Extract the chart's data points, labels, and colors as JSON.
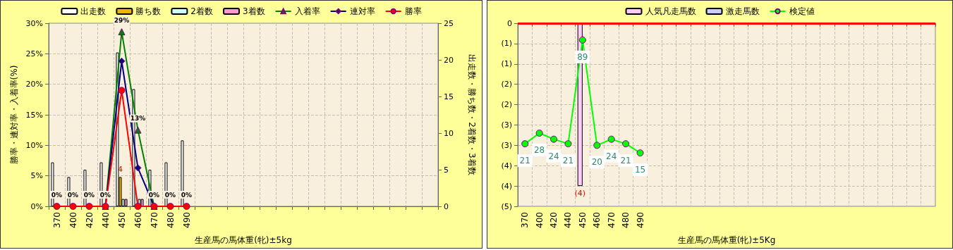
{
  "chart_data": [
    {
      "type": "bar",
      "xlabel": "生産馬の馬体重(牝)±5kg",
      "ylabel": "勝率・連対率・入着率(%)",
      "y2label": "出走数・勝ち数・2着数・3着数",
      "categories": [
        "370",
        "400",
        "420",
        "440",
        "450",
        "460",
        "470",
        "480",
        "490",
        null,
        null,
        null,
        null,
        null,
        null,
        null,
        null,
        null,
        null,
        null,
        null,
        null,
        null,
        null
      ],
      "ylim": [
        0,
        30
      ],
      "yticks": [
        {
          "value": 0,
          "label": "0%"
        },
        {
          "value": 5,
          "label": "5%"
        },
        {
          "value": 10,
          "label": "10%"
        },
        {
          "value": 15,
          "label": "15%"
        },
        {
          "value": 20,
          "label": "20%"
        },
        {
          "value": 25,
          "label": "25%"
        },
        {
          "value": 30,
          "label": "30%"
        }
      ],
      "y2lim": [
        0,
        25
      ],
      "y2ticks": [
        0,
        5,
        10,
        15,
        20,
        25
      ],
      "grid": true,
      "legend": "top",
      "series": [
        {
          "name": "出走数",
          "axis": "y2",
          "color": "#ffffff",
          "values": [
            6,
            4,
            5,
            6,
            21,
            16,
            5,
            6,
            9,
            null,
            null,
            null,
            null,
            null,
            null,
            null,
            null,
            null,
            null,
            null,
            null,
            null,
            null,
            null
          ]
        },
        {
          "name": "勝ち数",
          "axis": "y2",
          "color": "#f0b400",
          "values": [
            null,
            null,
            null,
            null,
            4,
            null,
            null,
            null,
            null,
            null,
            null,
            null,
            null,
            null,
            null,
            null,
            null,
            null,
            null,
            null,
            null,
            null,
            null,
            null
          ],
          "value_labels": [
            null,
            null,
            null,
            null,
            "4",
            null,
            null,
            null,
            null,
            null,
            null,
            null,
            null,
            null,
            null,
            null,
            null,
            null,
            null,
            null,
            null,
            null,
            null,
            null
          ]
        },
        {
          "name": "2着数",
          "axis": "y2",
          "color": "#ccffff",
          "values": [
            null,
            null,
            null,
            null,
            1,
            1,
            null,
            null,
            null,
            null,
            null,
            null,
            null,
            null,
            null,
            null,
            null,
            null,
            null,
            null,
            null,
            null,
            null,
            null
          ]
        },
        {
          "name": "3着数",
          "axis": "y2",
          "color": "#ff99cc",
          "values": [
            null,
            null,
            null,
            null,
            1,
            1,
            null,
            null,
            null,
            null,
            null,
            null,
            null,
            null,
            null,
            null,
            null,
            null,
            null,
            null,
            null,
            null,
            null,
            null
          ]
        },
        {
          "name": "入着率",
          "type": "line",
          "color": "#008000",
          "marker": "triangle",
          "values": [
            null,
            null,
            null,
            0,
            28.6,
            12.5,
            0,
            null,
            null,
            null,
            null,
            null,
            null,
            null,
            null,
            null,
            null,
            null,
            null,
            null,
            null,
            null,
            null,
            null
          ],
          "value_labels": [
            null,
            null,
            null,
            null,
            "29%",
            "13%",
            null,
            null,
            null,
            null,
            null,
            null,
            null,
            null,
            null,
            null,
            null,
            null,
            null,
            null,
            null,
            null,
            null,
            null
          ]
        },
        {
          "name": "連対率",
          "type": "line",
          "color": "#000080",
          "marker": "diamond",
          "values": [
            null,
            null,
            null,
            0,
            23.8,
            6.3,
            0,
            null,
            null,
            null,
            null,
            null,
            null,
            null,
            null,
            null,
            null,
            null,
            null,
            null,
            null,
            null,
            null,
            null
          ]
        },
        {
          "name": "勝率",
          "type": "line",
          "color": "#ff0000",
          "marker": "circle",
          "values": [
            0,
            0,
            0,
            0,
            19,
            0,
            0,
            0,
            0,
            null,
            null,
            null,
            null,
            null,
            null,
            null,
            null,
            null,
            null,
            null,
            null,
            null,
            null,
            null
          ],
          "value_labels": [
            "0%",
            "0%",
            "0%",
            "0%",
            null,
            null,
            "0%",
            "0%",
            "0%",
            null,
            null,
            null,
            null,
            null,
            null,
            null,
            null,
            null,
            null,
            null,
            null,
            null,
            null,
            null
          ]
        }
      ]
    },
    {
      "type": "bar",
      "xlabel": "生産馬の馬体重(牝)±5Kg",
      "categories": [
        "370",
        "400",
        "420",
        "440",
        "450",
        "460",
        "470",
        "480",
        "490",
        null,
        null,
        null,
        null,
        null,
        null,
        null,
        null,
        null,
        null,
        null,
        null,
        null,
        null,
        null,
        null,
        null,
        null,
        null,
        null
      ],
      "ylim": [
        -4.5,
        0
      ],
      "yticks": [
        {
          "value": -4.5,
          "label": "(5)"
        },
        {
          "value": -4,
          "label": "(4)"
        },
        {
          "value": -3.5,
          "label": "(4)"
        },
        {
          "value": -3,
          "label": "(3)"
        },
        {
          "value": -2.5,
          "label": "(3)"
        },
        {
          "value": -2,
          "label": "(2)"
        },
        {
          "value": -1.5,
          "label": "(2)"
        },
        {
          "value": -1,
          "label": "(1)"
        },
        {
          "value": -0.5,
          "label": "(1)"
        },
        0
      ],
      "y2lim": [
        -20,
        100
      ],
      "grid": true,
      "legend": "top",
      "ref_lines": [
        {
          "axis": "y",
          "value": 0,
          "color": "#ff0000"
        }
      ],
      "series": [
        {
          "name": "人気凡走馬数",
          "color": "#ffccff",
          "values": [
            null,
            null,
            null,
            null,
            -4,
            null,
            null,
            null,
            null,
            null,
            null,
            null,
            null,
            null,
            null,
            null,
            null,
            null,
            null,
            null,
            null,
            null,
            null,
            null,
            null,
            null,
            null,
            null,
            null
          ],
          "value_labels": [
            null,
            null,
            null,
            null,
            "(4)",
            null,
            null,
            null,
            null,
            null,
            null,
            null,
            null,
            null,
            null,
            null,
            null,
            null,
            null,
            null,
            null,
            null,
            null,
            null,
            null,
            null,
            null,
            null,
            null
          ]
        },
        {
          "name": "激走馬数",
          "color": "#ccccff",
          "values": [
            null,
            null,
            null,
            null,
            null,
            null,
            null,
            null,
            null,
            null,
            null,
            null,
            null,
            null,
            null,
            null,
            null,
            null,
            null,
            null,
            null,
            null,
            null,
            null,
            null,
            null,
            null,
            null,
            null
          ]
        },
        {
          "name": "検定値",
          "type": "line",
          "axis": "y2",
          "color": "#00ff00",
          "marker": "circle",
          "data_labels": true,
          "values": [
            21,
            28,
            24,
            21,
            89,
            20,
            24,
            21,
            15,
            null,
            null,
            null,
            null,
            null,
            null,
            null,
            null,
            null,
            null,
            null,
            null,
            null,
            null,
            null,
            null,
            null,
            null,
            null,
            null
          ]
        }
      ]
    }
  ]
}
